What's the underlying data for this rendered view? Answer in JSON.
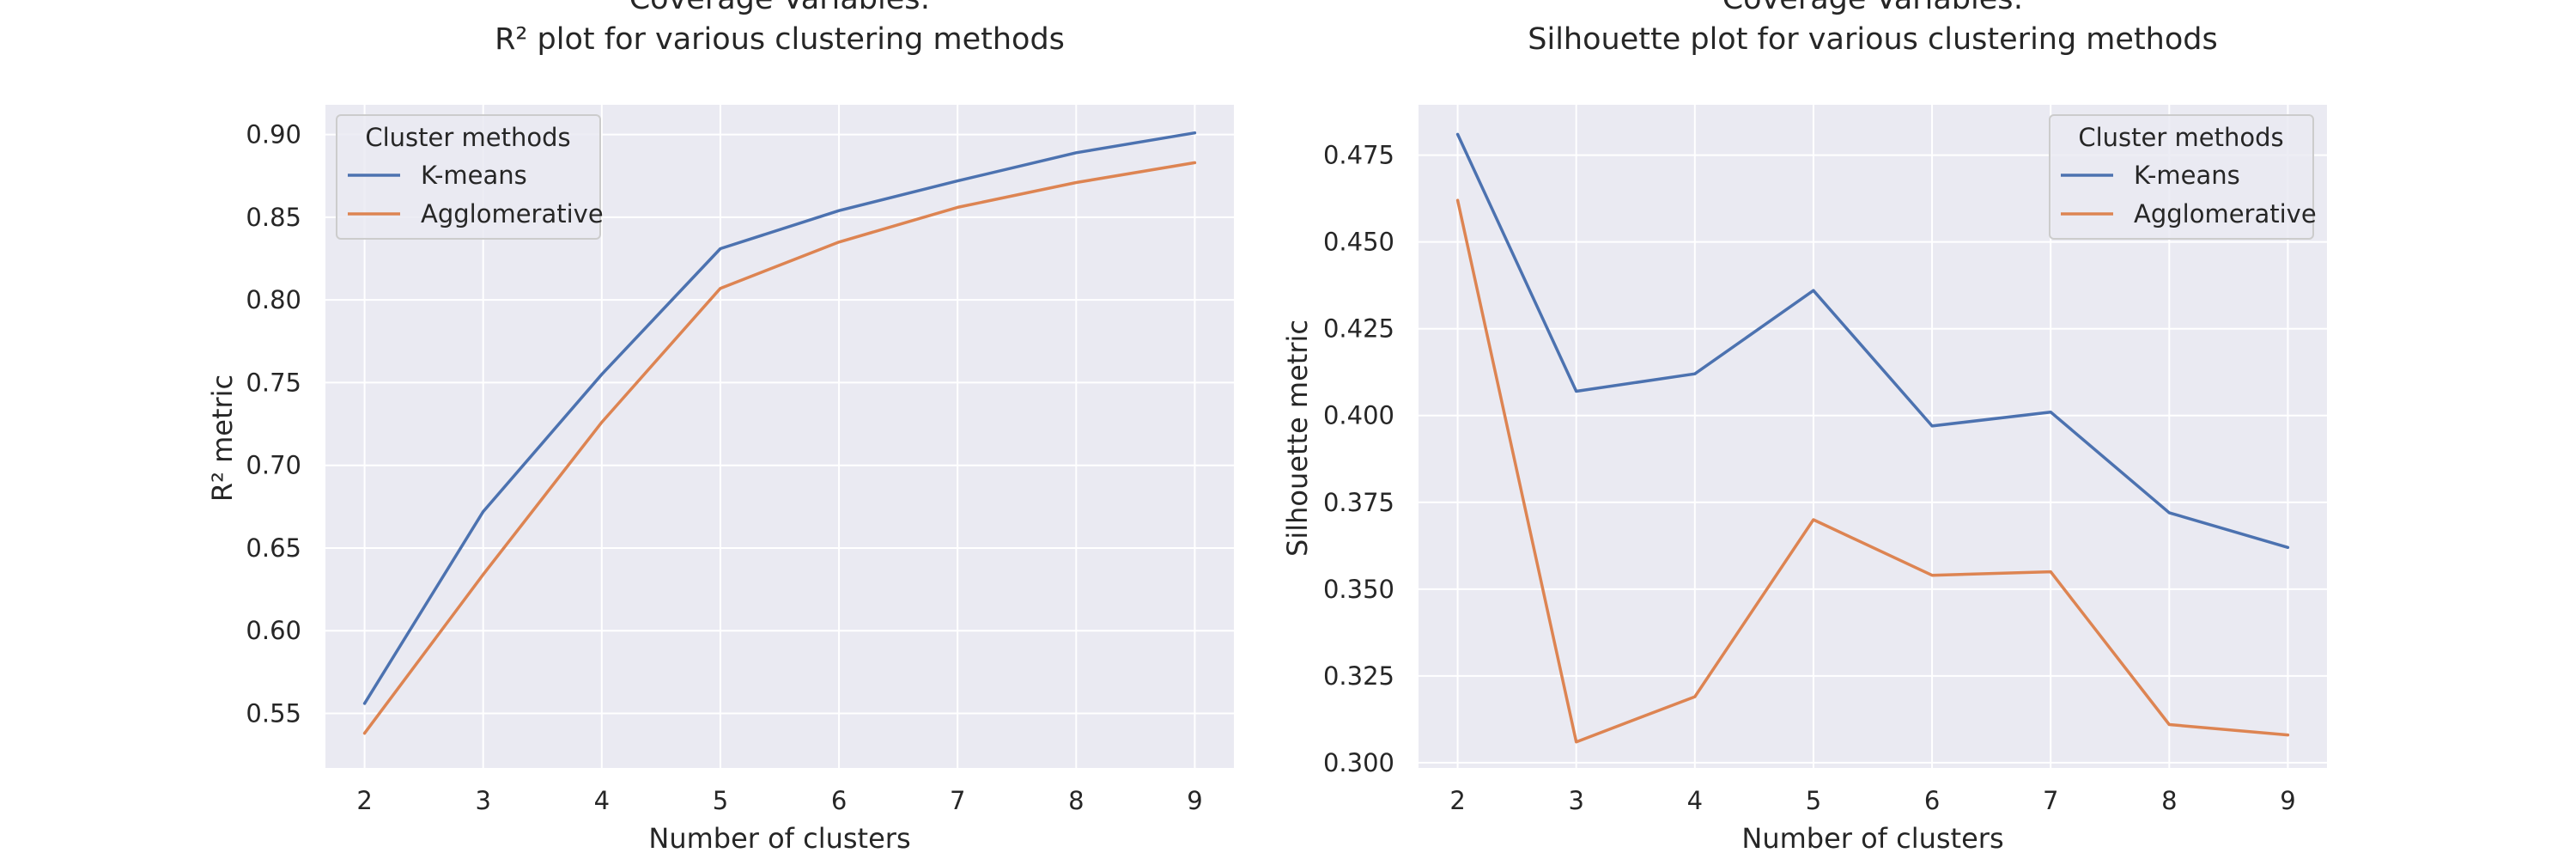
{
  "chart_data": [
    {
      "type": "line",
      "title_line1": "Coverage Variables:",
      "title_line2": "R² plot for various clustering methods",
      "xlabel": "Number of clusters",
      "ylabel": "R² metric",
      "x": [
        2,
        3,
        4,
        5,
        6,
        7,
        8,
        9
      ],
      "xticks": [
        2,
        3,
        4,
        5,
        6,
        7,
        8,
        9
      ],
      "xlim": [
        1.67,
        9.33
      ],
      "ylim": [
        0.517,
        0.918
      ],
      "yticks": [
        0.55,
        0.6,
        0.65,
        0.7,
        0.75,
        0.8,
        0.85,
        0.9
      ],
      "ytick_labels": [
        "0.55",
        "0.60",
        "0.65",
        "0.70",
        "0.75",
        "0.80",
        "0.85",
        "0.90"
      ],
      "grid": true,
      "legend_title": "Cluster methods",
      "legend_location": "upper left",
      "series": [
        {
          "name": "K-means",
          "color": "#4c72b0",
          "values": [
            0.556,
            0.672,
            0.755,
            0.831,
            0.854,
            0.872,
            0.889,
            0.901
          ]
        },
        {
          "name": "Agglomerative",
          "color": "#dd8452",
          "values": [
            0.538,
            0.634,
            0.726,
            0.807,
            0.835,
            0.856,
            0.871,
            0.883
          ]
        }
      ]
    },
    {
      "type": "line",
      "title_line1": "Coverage Variables:",
      "title_line2": "Silhouette plot for various clustering methods",
      "xlabel": "Number of clusters",
      "ylabel": "Silhouette metric",
      "x": [
        2,
        3,
        4,
        5,
        6,
        7,
        8,
        9
      ],
      "xticks": [
        2,
        3,
        4,
        5,
        6,
        7,
        8,
        9
      ],
      "xlim": [
        1.67,
        9.33
      ],
      "ylim": [
        0.2985,
        0.4895
      ],
      "yticks": [
        0.3,
        0.325,
        0.35,
        0.375,
        0.4,
        0.425,
        0.45,
        0.475
      ],
      "ytick_labels": [
        "0.300",
        "0.325",
        "0.350",
        "0.375",
        "0.400",
        "0.425",
        "0.450",
        "0.475"
      ],
      "grid": true,
      "legend_title": "Cluster methods",
      "legend_location": "upper right",
      "series": [
        {
          "name": "K-means",
          "color": "#4c72b0",
          "values": [
            0.481,
            0.407,
            0.412,
            0.436,
            0.397,
            0.401,
            0.372,
            0.362
          ]
        },
        {
          "name": "Agglomerative",
          "color": "#dd8452",
          "values": [
            0.462,
            0.306,
            0.319,
            0.37,
            0.354,
            0.355,
            0.311,
            0.308
          ]
        }
      ]
    }
  ],
  "style": {
    "axes_facecolor": "#eaeaf2",
    "grid_color": "#ffffff",
    "text_color": "#262626"
  }
}
